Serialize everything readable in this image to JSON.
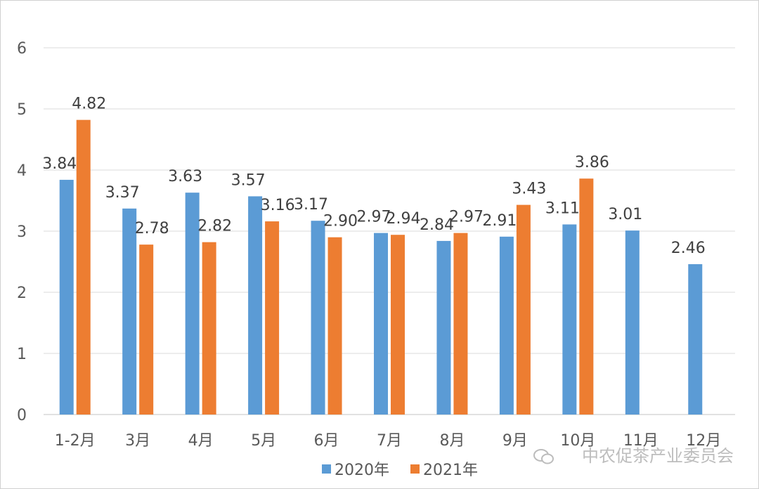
{
  "chart_data": {
    "type": "bar",
    "categories": [
      "1-2月",
      "3月",
      "4月",
      "5月",
      "6月",
      "7月",
      "8月",
      "9月",
      "10月",
      "11月",
      "12月"
    ],
    "series": [
      {
        "name": "2020年",
        "color": "#5B9BD5",
        "values": [
          3.84,
          3.37,
          3.63,
          3.57,
          3.17,
          2.97,
          2.84,
          2.91,
          3.11,
          3.01,
          2.46
        ],
        "labels": [
          "3.84",
          "3.37",
          "3.63",
          "3.57",
          "3.17",
          "2.97",
          "2.84",
          "2.91",
          "3.11",
          "3.01",
          "2.46"
        ]
      },
      {
        "name": "2021年",
        "color": "#ED7D31",
        "values": [
          4.82,
          2.78,
          2.82,
          3.16,
          2.9,
          2.94,
          2.97,
          3.43,
          3.86,
          null,
          null
        ],
        "labels": [
          "4.82",
          "2.78",
          "2.82",
          "3.16",
          "2.90",
          "2.94",
          "2.97",
          "3.43",
          "3.86",
          null,
          null
        ]
      }
    ],
    "yticks": [
      "0",
      "1",
      "2",
      "3",
      "4",
      "5",
      "6"
    ],
    "ylim": [
      0,
      6
    ],
    "grid": true,
    "legend": "bottom",
    "title": "",
    "xlabel": "",
    "ylabel": ""
  },
  "watermark": "中农促茶产业委员会"
}
